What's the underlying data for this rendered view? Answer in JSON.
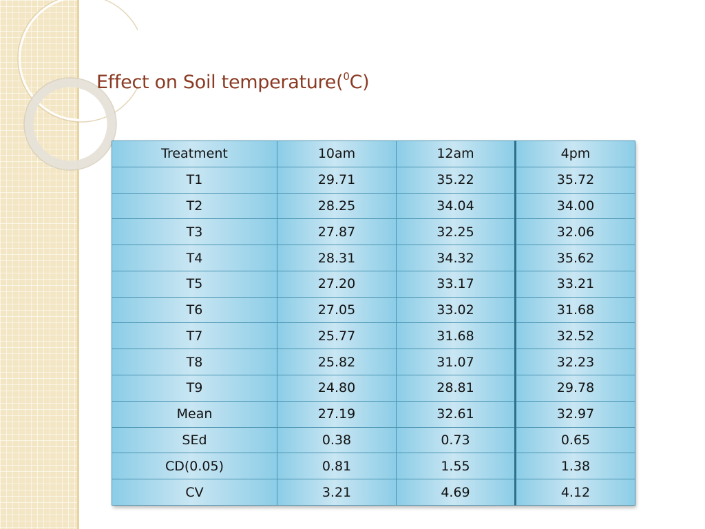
{
  "slide": {
    "title_main": "Effect on Soil temperature(",
    "title_sup": "0",
    "title_end": "C)"
  },
  "table": {
    "headers": [
      "Treatment",
      "10am",
      "12am",
      "4pm"
    ],
    "rows": [
      [
        "T1",
        "29.71",
        "35.22",
        "35.72"
      ],
      [
        "T2",
        "28.25",
        "34.04",
        "34.00"
      ],
      [
        "T3",
        "27.87",
        "32.25",
        "32.06"
      ],
      [
        "T4",
        "28.31",
        "34.32",
        "35.62"
      ],
      [
        "T5",
        "27.20",
        "33.17",
        "33.21"
      ],
      [
        "T6",
        "27.05",
        "33.02",
        "31.68"
      ],
      [
        "T7",
        "25.77",
        "31.68",
        "32.52"
      ],
      [
        "T8",
        "25.82",
        "31.07",
        "32.23"
      ],
      [
        "T9",
        "24.80",
        "28.81",
        "29.78"
      ],
      [
        "Mean",
        "27.19",
        "32.61",
        "32.97"
      ],
      [
        "SEd",
        "0.38",
        "0.73",
        "0.65"
      ],
      [
        "CD(0.05)",
        "0.81",
        "1.55",
        "1.38"
      ],
      [
        "CV",
        "3.21",
        "4.69",
        "4.12"
      ]
    ]
  },
  "colors": {
    "title": "#8a3a22",
    "cell_light": "#c9e6f3",
    "cell_dark": "#8ccde7",
    "border": "#4a93b0",
    "side_panel": "#f3e6c4"
  }
}
